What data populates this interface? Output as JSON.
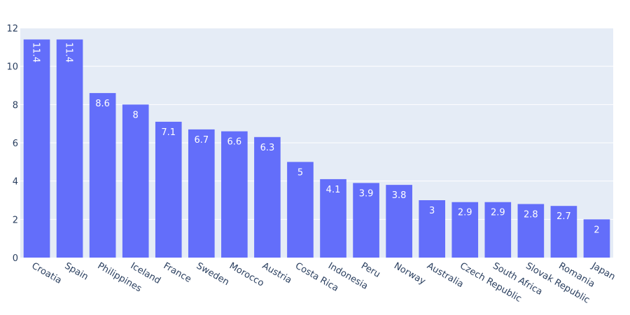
{
  "colors": {
    "bar": "#636efa",
    "plot_background": "#e5ecf6",
    "gridline": "#ffffff",
    "tick_text": "#2a3f5f",
    "bar_label_text": "#ffffff"
  },
  "chart_data": {
    "type": "bar",
    "title": "",
    "xlabel": "",
    "ylabel": "",
    "categories": [
      "Croatia",
      "Spain",
      "Philippines",
      "Iceland",
      "France",
      "Sweden",
      "Morocco",
      "Austria",
      "Costa Rica",
      "Indonesia",
      "Peru",
      "Norway",
      "Australia",
      "Czech Republic",
      "South Africa",
      "Slovak Republic",
      "Romania",
      "Japan"
    ],
    "values": [
      11.4,
      11.4,
      8.6,
      8,
      7.1,
      6.7,
      6.6,
      6.3,
      5,
      4.1,
      3.9,
      3.8,
      3,
      2.9,
      2.9,
      2.8,
      2.7,
      2
    ],
    "value_labels": [
      "11.4",
      "11.4",
      "8.6",
      "8",
      "7.1",
      "6.7",
      "6.6",
      "6.3",
      "5",
      "4.1",
      "3.9",
      "3.8",
      "3",
      "2.9",
      "2.9",
      "2.8",
      "2.7",
      "2"
    ],
    "ylim": [
      0,
      12
    ],
    "yticks": [
      0,
      2,
      4,
      6,
      8,
      10,
      12
    ],
    "grid": true,
    "legend": "none"
  }
}
